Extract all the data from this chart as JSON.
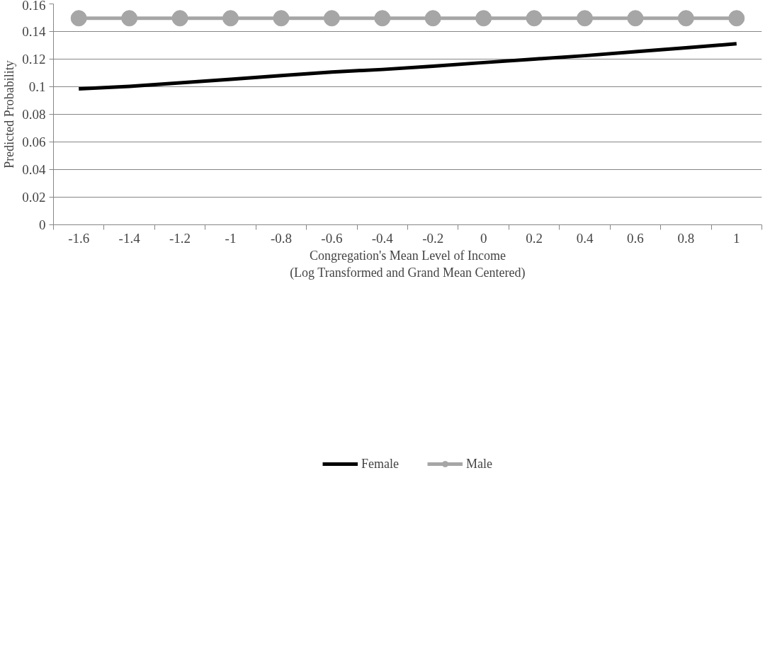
{
  "chart_data": {
    "type": "line",
    "xlabel": "Congregation's Mean Level of Income\n(Log Transformed and Grand Mean Centered)",
    "ylabel": "Predicted Probability",
    "categories": [
      "-1.6",
      "-1.4",
      "-1.2",
      "-1",
      "-0.8",
      "-0.6",
      "-0.4",
      "-0.2",
      "0",
      "0.2",
      "0.4",
      "0.6",
      "0.8",
      "1"
    ],
    "series": [
      {
        "name": "Female",
        "color": "#000000",
        "marker": "none",
        "values": [
          0.0984,
          0.1003,
          0.1028,
          0.1054,
          0.1081,
          0.1107,
          0.1125,
          0.1149,
          0.1175,
          0.12,
          0.1225,
          0.1254,
          0.1282,
          0.1311
        ]
      },
      {
        "name": "Male",
        "color": "#a6a6a6",
        "marker": "circle",
        "values": [
          0.1496,
          0.1496,
          0.1496,
          0.1496,
          0.1496,
          0.1496,
          0.1496,
          0.1496,
          0.1496,
          0.1496,
          0.1496,
          0.1496,
          0.1496,
          0.1496
        ]
      }
    ],
    "ylim": [
      0,
      0.16
    ],
    "yticks": [
      0,
      0.02,
      0.04,
      0.06,
      0.08,
      0.1,
      0.12,
      0.14,
      0.16
    ],
    "grid": "y",
    "legend": "bottom"
  }
}
